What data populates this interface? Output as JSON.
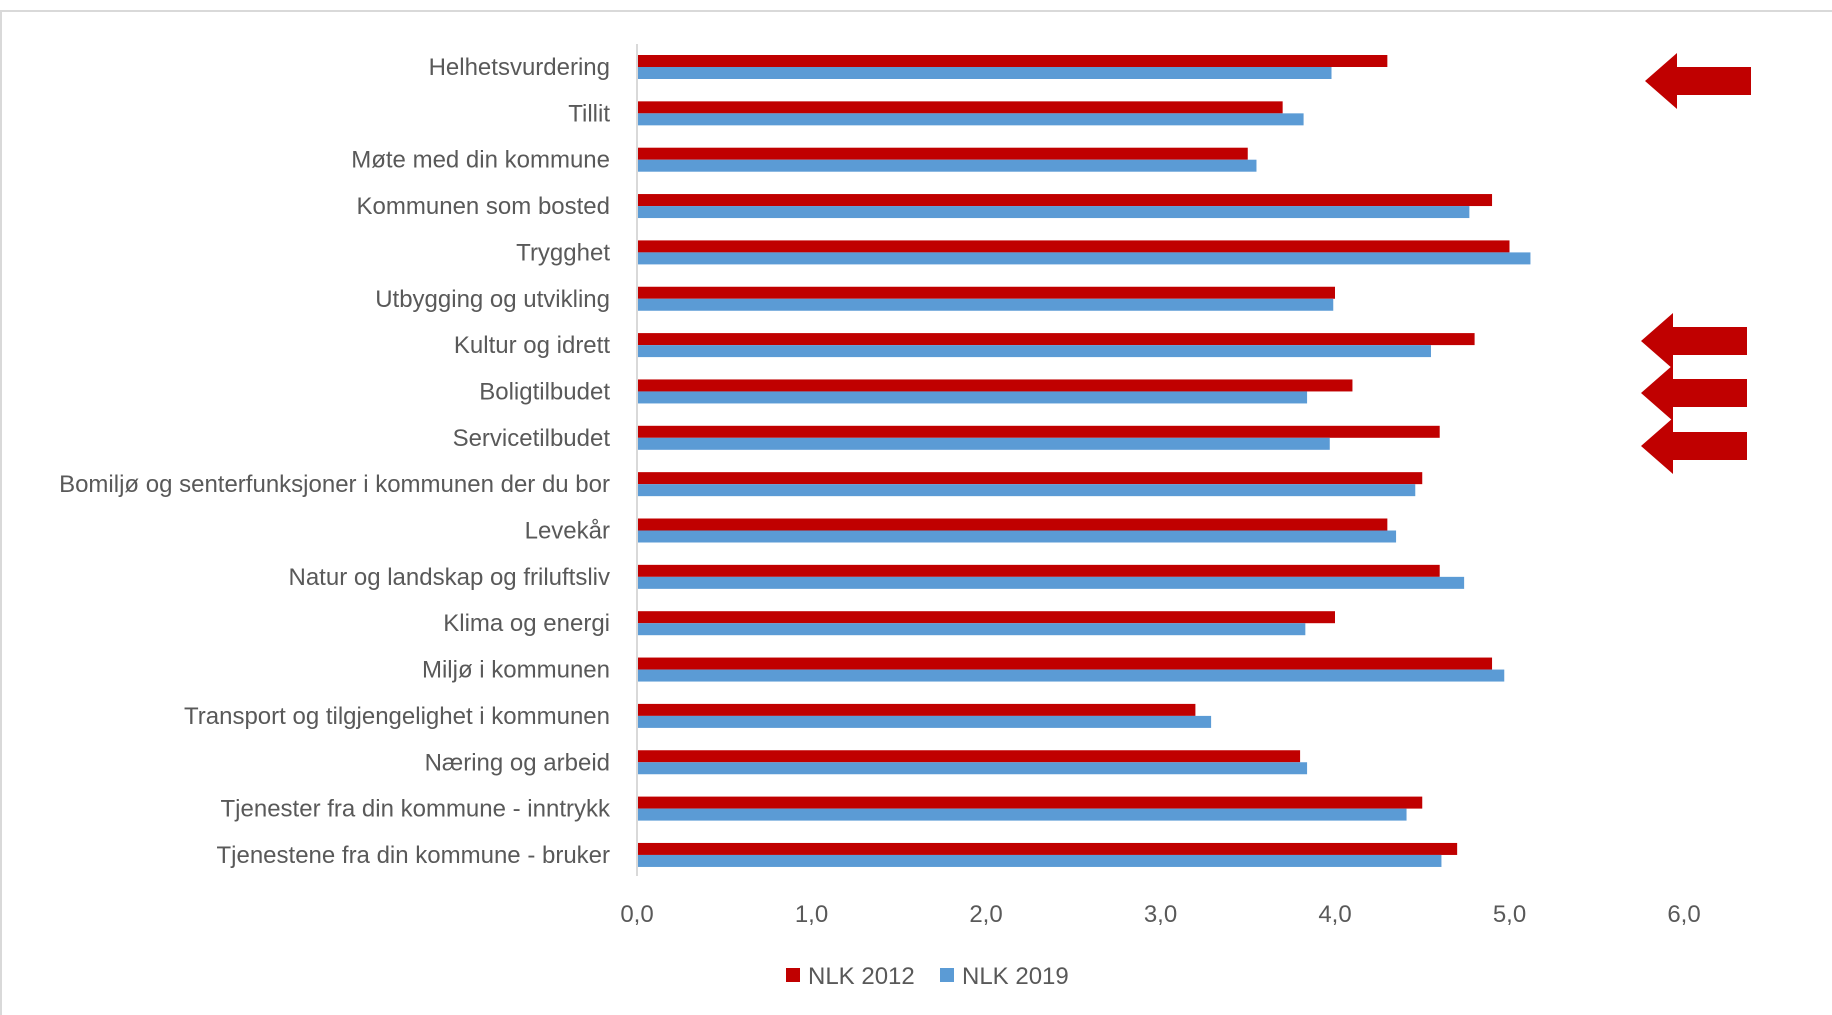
{
  "chart_data": {
    "type": "bar",
    "orientation": "horizontal",
    "categories": [
      "Helhetsvurdering",
      "Tillit",
      "Møte med din kommune",
      "Kommunen som bosted",
      "Trygghet",
      "Utbygging og utvikling",
      "Kultur og idrett",
      "Boligtilbudet",
      "Servicetilbudet",
      "Bomiljø og senterfunksjoner i kommunen der du bor",
      "Levekår",
      "Natur og landskap og friluftsliv",
      "Klima og energi",
      "Miljø i kommunen",
      "Transport og tilgjengelighet i kommunen",
      "Næring og arbeid",
      "Tjenester fra din kommune - inntrykk",
      "Tjenestene fra din kommune - bruker"
    ],
    "series": [
      {
        "name": "NLK 2012",
        "color": "#c00000",
        "values": [
          4.3,
          3.7,
          3.5,
          4.9,
          5.0,
          4.0,
          4.8,
          4.1,
          4.6,
          4.5,
          4.3,
          4.6,
          4.0,
          4.9,
          3.2,
          3.8,
          4.5,
          4.7
        ]
      },
      {
        "name": "NLK 2019",
        "color": "#5b9bd5",
        "values": [
          3.98,
          3.82,
          3.55,
          4.77,
          5.12,
          3.99,
          4.55,
          3.84,
          3.97,
          4.46,
          4.35,
          4.74,
          3.83,
          4.97,
          3.29,
          3.84,
          4.41,
          4.61
        ]
      }
    ],
    "xlim": [
      0,
      6
    ],
    "x_ticks": [
      "0,0",
      "1,0",
      "2,0",
      "3,0",
      "4,0",
      "5,0",
      "6,0"
    ],
    "x_tick_values": [
      0,
      1,
      2,
      3,
      4,
      5,
      6
    ],
    "grid": false,
    "legend_position": "bottom",
    "title": "",
    "xlabel": "",
    "ylabel": "",
    "annotations": [
      {
        "type": "arrow",
        "direction": "left",
        "color": "#c00000",
        "category": "Helhetsvurdering"
      },
      {
        "type": "arrow",
        "direction": "left",
        "color": "#c00000",
        "category": "Kultur og idrett"
      },
      {
        "type": "arrow",
        "direction": "left",
        "color": "#c00000",
        "category": "Boligtilbudet"
      },
      {
        "type": "arrow",
        "direction": "left",
        "color": "#c00000",
        "category": "Servicetilbudet"
      }
    ]
  }
}
